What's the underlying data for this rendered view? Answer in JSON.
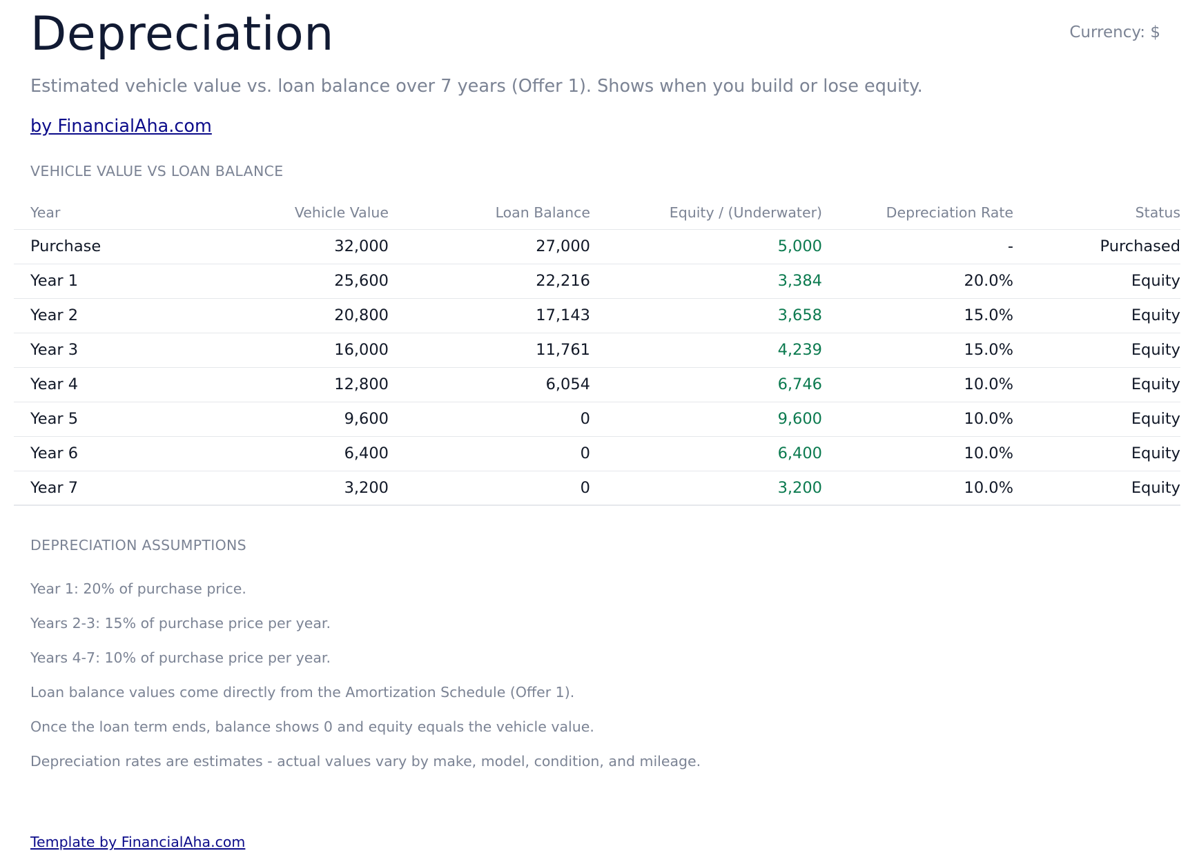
{
  "header": {
    "title": "Depreciation",
    "currency_label": "Currency: $",
    "subtitle": "Estimated vehicle value vs. loan balance over 7 years (Offer 1). Shows when you build or lose equity.",
    "brand_link": "by FinancialAha.com"
  },
  "table_section": {
    "heading": "VEHICLE VALUE VS LOAN BALANCE",
    "columns": [
      "Year",
      "Vehicle Value",
      "Loan Balance",
      "Equity / (Underwater)",
      "Depreciation Rate",
      "Status"
    ],
    "rows": [
      [
        "Purchase",
        "32,000",
        "27,000",
        "5,000",
        "-",
        "Purchased"
      ],
      [
        "Year 1",
        "25,600",
        "22,216",
        "3,384",
        "20.0%",
        "Equity"
      ],
      [
        "Year 2",
        "20,800",
        "17,143",
        "3,658",
        "15.0%",
        "Equity"
      ],
      [
        "Year 3",
        "16,000",
        "11,761",
        "4,239",
        "15.0%",
        "Equity"
      ],
      [
        "Year 4",
        "12,800",
        "6,054",
        "6,746",
        "10.0%",
        "Equity"
      ],
      [
        "Year 5",
        "9,600",
        "0",
        "9,600",
        "10.0%",
        "Equity"
      ],
      [
        "Year 6",
        "6,400",
        "0",
        "6,400",
        "10.0%",
        "Equity"
      ],
      [
        "Year 7",
        "3,200",
        "0",
        "3,200",
        "10.0%",
        "Equity"
      ]
    ]
  },
  "assumptions_section": {
    "heading": "DEPRECIATION ASSUMPTIONS",
    "items": [
      "Year 1: 20% of purchase price.",
      "Years 2-3: 15% of purchase price per year.",
      "Years 4-7: 10% of purchase price per year.",
      "Loan balance values come directly from the Amortization Schedule (Offer 1).",
      "Once the loan term ends, balance shows 0 and equity equals the vehicle value.",
      "Depreciation rates are estimates - actual values vary by make, model, condition, and mileage."
    ]
  },
  "footer": {
    "link": "Template by FinancialAha.com"
  },
  "colors": {
    "title": "#111a33",
    "muted": "#7b8394",
    "link": "#0c0c8a",
    "equity_positive": "#0b7a4f",
    "row_border": "#e5e7eb"
  }
}
